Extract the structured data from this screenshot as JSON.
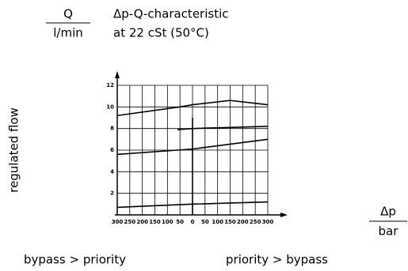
{
  "chart_data": {
    "type": "line",
    "title": "Δp-Q-characteristic",
    "subtitle": "at 22 cSt (50°C)",
    "y_label": "regulated flow",
    "y_unit": {
      "symbol": "Q",
      "unit": "l/min"
    },
    "x_unit": {
      "symbol": "Δp",
      "unit": "bar"
    },
    "x_left_label": "bypass > priority",
    "x_right_label": "priority > bypass",
    "xlim": [
      -300,
      300
    ],
    "ylim": [
      0,
      12
    ],
    "xticks": [
      {
        "value": -300,
        "label": "300"
      },
      {
        "value": -250,
        "label": "250"
      },
      {
        "value": -200,
        "label": "200"
      },
      {
        "value": -150,
        "label": "150"
      },
      {
        "value": -100,
        "label": "100"
      },
      {
        "value": -50,
        "label": "50"
      },
      {
        "value": 0,
        "label": "0"
      },
      {
        "value": 50,
        "label": "50"
      },
      {
        "value": 100,
        "label": "100"
      },
      {
        "value": 150,
        "label": "150"
      },
      {
        "value": 200,
        "label": "200"
      },
      {
        "value": 250,
        "label": "250"
      },
      {
        "value": 300,
        "label": "300"
      }
    ],
    "yticks": [
      2,
      4,
      6,
      8,
      10,
      12
    ],
    "grid": true,
    "color": "#000000",
    "series": [
      {
        "x": [
          -300,
          -50,
          0,
          150,
          300
        ],
        "values": [
          9.2,
          10,
          10.2,
          10.6,
          10.2
        ]
      },
      {
        "x": [
          -60,
          0,
          300
        ],
        "values": [
          7.9,
          8,
          8.2
        ]
      },
      {
        "x": [
          -300,
          0,
          300
        ],
        "values": [
          5.6,
          6.1,
          7
        ]
      },
      {
        "x": [
          -300,
          0,
          300
        ],
        "values": [
          0.7,
          1,
          1.2
        ]
      },
      {
        "x": [
          0,
          0
        ],
        "values": [
          9,
          0
        ]
      }
    ]
  }
}
